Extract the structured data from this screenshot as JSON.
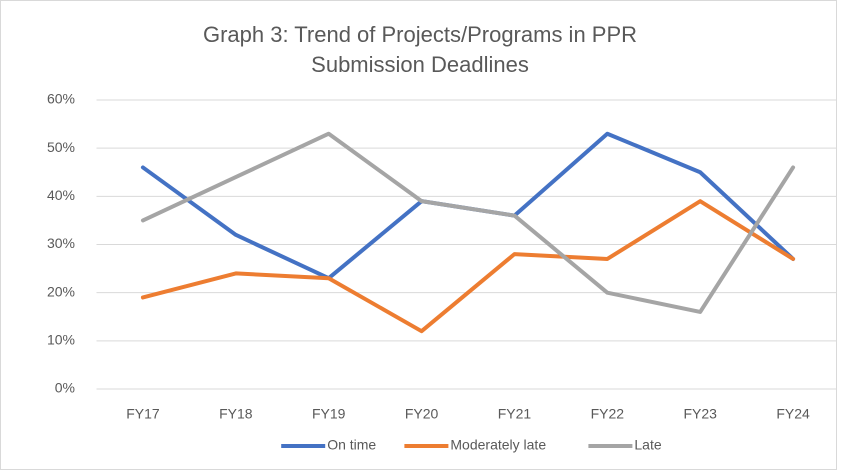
{
  "chart_data": {
    "type": "line",
    "title": "Graph 3: Trend of Projects/Programs in PPR Submission Deadlines",
    "categories": [
      "FY17",
      "FY18",
      "FY19",
      "FY20",
      "FY21",
      "FY22",
      "FY23",
      "FY24"
    ],
    "series": [
      {
        "name": "On time",
        "color": "#4472c4",
        "values": [
          46,
          32,
          23,
          39,
          36,
          53,
          45,
          27
        ]
      },
      {
        "name": "Moderately late",
        "color": "#ed7d31",
        "values": [
          19,
          24,
          23,
          12,
          28,
          27,
          39,
          27
        ]
      },
      {
        "name": "Late",
        "color": "#a5a5a5",
        "values": [
          35,
          44,
          53,
          39,
          36,
          20,
          16,
          46
        ]
      }
    ],
    "ylim": [
      0,
      60
    ],
    "yticks": [
      {
        "value": 0,
        "label": "0%"
      },
      {
        "value": 10,
        "label": "10%"
      },
      {
        "value": 20,
        "label": "20%"
      },
      {
        "value": 30,
        "label": "30%"
      },
      {
        "value": 40,
        "label": "40%"
      },
      {
        "value": 50,
        "label": "50%"
      },
      {
        "value": 60,
        "label": "60%"
      }
    ],
    "grid": true,
    "legend": "bottom"
  }
}
